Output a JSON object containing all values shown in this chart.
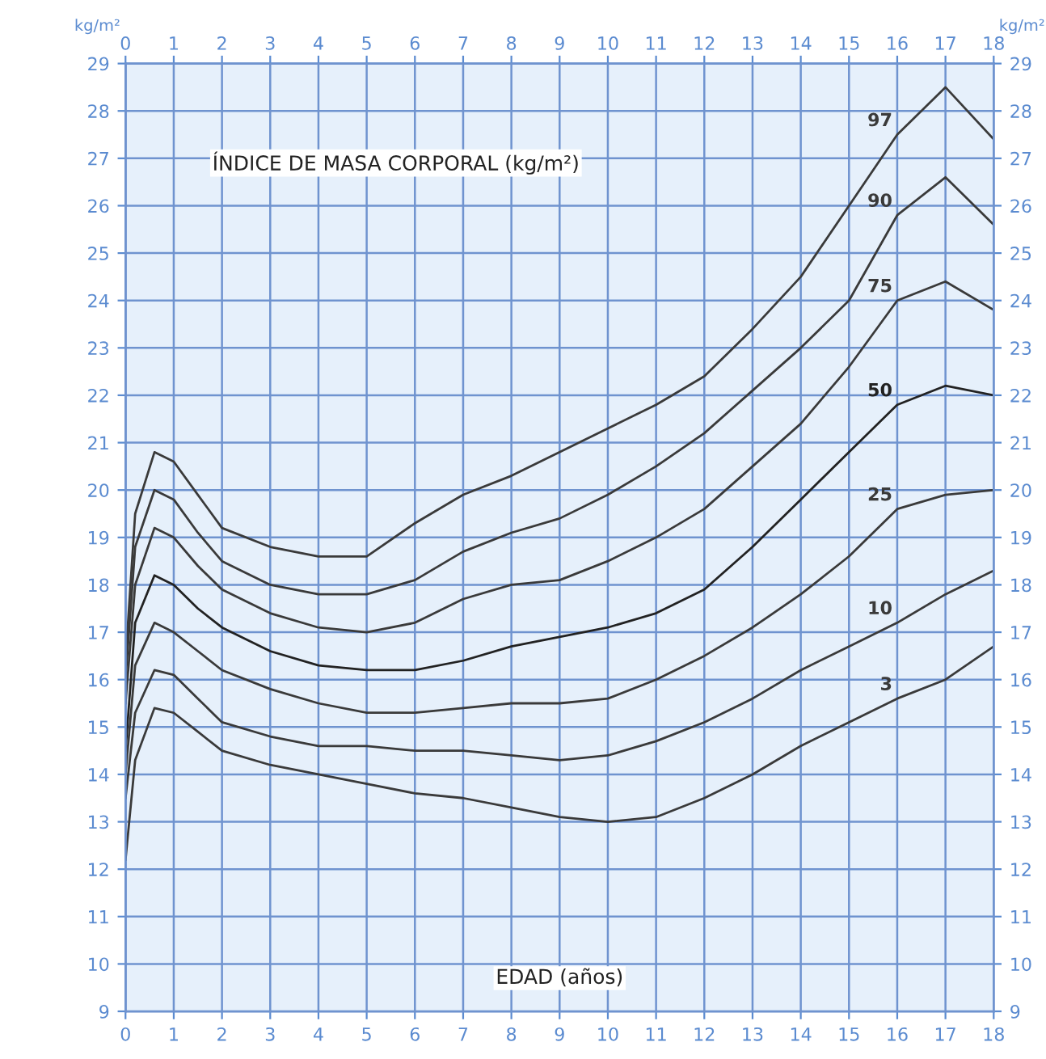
{
  "chart_data": {
    "type": "line",
    "title": "ÍNDICE DE MASA CORPORAL (kg/m²)",
    "xlabel": "EDAD (años)",
    "ylabel": "kg/m²",
    "y2label": "kg/m²",
    "x": [
      0,
      0.2,
      0.6,
      1,
      1.5,
      2,
      3,
      4,
      5,
      6,
      7,
      8,
      9,
      10,
      11,
      12,
      13,
      14,
      15,
      16,
      17,
      18
    ],
    "series": [
      {
        "name": "97",
        "color": "#3a3a3a",
        "values": [
          16.4,
          19.5,
          20.8,
          20.6,
          19.9,
          19.2,
          18.8,
          18.6,
          18.6,
          19.3,
          19.9,
          20.3,
          20.8,
          21.3,
          21.8,
          22.4,
          23.4,
          24.5,
          26.0,
          27.5,
          28.5,
          27.4
        ]
      },
      {
        "name": "90",
        "color": "#3a3a3a",
        "values": [
          16.0,
          18.8,
          20.0,
          19.8,
          19.1,
          18.5,
          18.0,
          17.8,
          17.8,
          18.1,
          18.7,
          19.1,
          19.4,
          19.9,
          20.5,
          21.2,
          22.1,
          23.0,
          24.0,
          25.8,
          26.6,
          25.6
        ]
      },
      {
        "name": "75",
        "color": "#3a3a3a",
        "values": [
          15.5,
          18.0,
          19.2,
          19.0,
          18.4,
          17.9,
          17.4,
          17.1,
          17.0,
          17.2,
          17.7,
          18.0,
          18.1,
          18.5,
          19.0,
          19.6,
          20.5,
          21.4,
          22.6,
          24.0,
          24.4,
          23.8
        ]
      },
      {
        "name": "50",
        "color": "#222222",
        "values": [
          14.5,
          17.2,
          18.2,
          18.0,
          17.5,
          17.1,
          16.6,
          16.3,
          16.2,
          16.2,
          16.4,
          16.7,
          16.9,
          17.1,
          17.4,
          17.9,
          18.8,
          19.8,
          20.8,
          21.8,
          22.2,
          22.0
        ]
      },
      {
        "name": "25",
        "color": "#3a3a3a",
        "values": [
          14.0,
          16.3,
          17.2,
          17.0,
          16.6,
          16.2,
          15.8,
          15.5,
          15.3,
          15.3,
          15.4,
          15.5,
          15.5,
          15.6,
          16.0,
          16.5,
          17.1,
          17.8,
          18.6,
          19.6,
          19.9,
          20.0
        ]
      },
      {
        "name": "10",
        "color": "#3a3a3a",
        "values": [
          13.5,
          15.3,
          16.2,
          16.1,
          15.6,
          15.1,
          14.8,
          14.6,
          14.6,
          14.5,
          14.5,
          14.4,
          14.3,
          14.4,
          14.7,
          15.1,
          15.6,
          16.2,
          16.7,
          17.2,
          17.8,
          18.3
        ]
      },
      {
        "name": "3",
        "color": "#3a3a3a",
        "values": [
          12.2,
          14.3,
          15.4,
          15.3,
          14.9,
          14.5,
          14.2,
          14.0,
          13.8,
          13.6,
          13.5,
          13.3,
          13.1,
          13.0,
          13.1,
          13.5,
          14.0,
          14.6,
          15.1,
          15.6,
          16.0,
          16.7
        ]
      }
    ],
    "xlim": [
      0,
      18
    ],
    "xticks": [
      0,
      1,
      2,
      3,
      4,
      5,
      6,
      7,
      8,
      9,
      10,
      11,
      12,
      13,
      14,
      15,
      16,
      17,
      18
    ],
    "x2lim": [
      0,
      18
    ],
    "x2ticks": [
      0,
      1,
      2,
      3,
      4,
      5,
      6,
      7,
      8,
      9,
      10,
      11,
      12,
      13,
      14,
      15,
      16,
      17,
      18
    ],
    "ylim": [
      9,
      29
    ],
    "yticks": [
      9,
      10,
      11,
      12,
      13,
      14,
      15,
      16,
      17,
      18,
      19,
      20,
      21,
      22,
      23,
      24,
      25,
      26,
      27,
      28,
      29
    ],
    "y2lim": [
      9,
      29
    ],
    "y2ticks": [
      9,
      10,
      11,
      12,
      13,
      14,
      15,
      16,
      17,
      18,
      19,
      20,
      21,
      22,
      23,
      24,
      25,
      26,
      27,
      28,
      29
    ],
    "grid": true,
    "marker": "none",
    "line_style": "solid",
    "legend": false
  }
}
